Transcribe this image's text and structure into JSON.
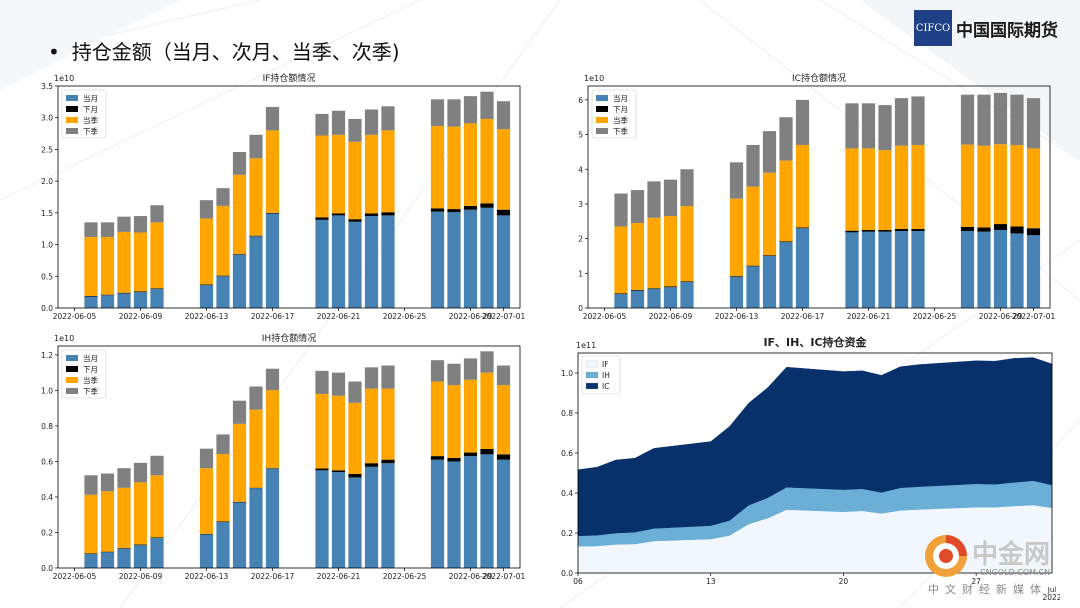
{
  "slide": {
    "bullet": "•",
    "title": "持仓金额（当月、次月、当季、次季)"
  },
  "logo": {
    "mark": "CIFCO",
    "name": "中国国际期货"
  },
  "watermark": {
    "name": "中金网",
    "url": "CNGOLD.COM.CN",
    "tagline": "中文财经新媒体"
  },
  "colors": {
    "current_month": "#4682b4",
    "next_month": "#000000",
    "current_quarter": "#ffa500",
    "next_quarter": "#808080",
    "IF": "#f2f7fd",
    "IH": "#6baed6",
    "IC": "#08306b"
  },
  "chart_data": [
    {
      "id": "if",
      "type": "bar",
      "stacked": true,
      "title": "IF持仓额情况",
      "y_exponent": "1e10",
      "ylim": [
        0,
        3.5
      ],
      "yticks": [
        0.0,
        0.5,
        1.0,
        1.5,
        2.0,
        2.5,
        3.0,
        3.5
      ],
      "xticks": [
        "2022-06-05",
        "2022-06-09",
        "2022-06-13",
        "2022-06-17",
        "2022-06-21",
        "2022-06-25",
        "2022-06-29",
        "2022-07-01"
      ],
      "dates": [
        "2022-06-06",
        "2022-06-07",
        "2022-06-08",
        "2022-06-09",
        "2022-06-10",
        "2022-06-13",
        "2022-06-14",
        "2022-06-15",
        "2022-06-16",
        "2022-06-17",
        "2022-06-20",
        "2022-06-21",
        "2022-06-22",
        "2022-06-23",
        "2022-06-24",
        "2022-06-27",
        "2022-06-28",
        "2022-06-29",
        "2022-06-30",
        "2022-07-01"
      ],
      "legend": [
        "当月",
        "下月",
        "当季",
        "下季"
      ],
      "legend_position": "upper-left",
      "series": [
        {
          "name": "当月",
          "values": [
            0.18,
            0.2,
            0.23,
            0.25,
            0.3,
            0.36,
            0.5,
            0.84,
            1.13,
            1.49,
            1.39,
            1.46,
            1.36,
            1.45,
            1.46,
            1.52,
            1.51,
            1.55,
            1.58,
            1.46
          ]
        },
        {
          "name": "下月",
          "values": [
            0.01,
            0.01,
            0.01,
            0.01,
            0.01,
            0.01,
            0.01,
            0.01,
            0.01,
            0.01,
            0.04,
            0.03,
            0.04,
            0.04,
            0.05,
            0.05,
            0.05,
            0.06,
            0.07,
            0.09
          ]
        },
        {
          "name": "当季",
          "values": [
            0.93,
            0.91,
            0.96,
            0.93,
            1.04,
            1.04,
            1.1,
            1.25,
            1.22,
            1.3,
            1.29,
            1.24,
            1.22,
            1.24,
            1.29,
            1.3,
            1.3,
            1.3,
            1.33,
            1.27
          ]
        },
        {
          "name": "下季",
          "values": [
            0.23,
            0.23,
            0.24,
            0.26,
            0.27,
            0.29,
            0.28,
            0.36,
            0.37,
            0.37,
            0.34,
            0.38,
            0.36,
            0.4,
            0.38,
            0.42,
            0.43,
            0.43,
            0.43,
            0.44
          ]
        }
      ]
    },
    {
      "id": "ic",
      "type": "bar",
      "stacked": true,
      "title": "IC持仓额情况",
      "y_exponent": "1e10",
      "ylim": [
        0,
        6.4
      ],
      "yticks": [
        0,
        1,
        2,
        3,
        4,
        5,
        6
      ],
      "xticks": [
        "2022-06-05",
        "2022-06-09",
        "2022-06-13",
        "2022-06-17",
        "2022-06-21",
        "2022-06-25",
        "2022-06-29",
        "2022-07-01"
      ],
      "dates": [
        "2022-06-06",
        "2022-06-07",
        "2022-06-08",
        "2022-06-09",
        "2022-06-10",
        "2022-06-13",
        "2022-06-14",
        "2022-06-15",
        "2022-06-16",
        "2022-06-17",
        "2022-06-20",
        "2022-06-21",
        "2022-06-22",
        "2022-06-23",
        "2022-06-24",
        "2022-06-27",
        "2022-06-28",
        "2022-06-29",
        "2022-06-30",
        "2022-07-01"
      ],
      "legend": [
        "当月",
        "下月",
        "当季",
        "下季"
      ],
      "legend_position": "upper-left",
      "series": [
        {
          "name": "当月",
          "values": [
            0.4,
            0.5,
            0.55,
            0.6,
            0.75,
            0.9,
            1.2,
            1.5,
            1.9,
            2.3,
            2.18,
            2.2,
            2.2,
            2.22,
            2.22,
            2.22,
            2.2,
            2.25,
            2.15,
            2.1
          ]
        },
        {
          "name": "下月",
          "values": [
            0.02,
            0.02,
            0.02,
            0.02,
            0.02,
            0.02,
            0.02,
            0.02,
            0.02,
            0.02,
            0.05,
            0.05,
            0.05,
            0.06,
            0.06,
            0.12,
            0.12,
            0.17,
            0.2,
            0.2
          ]
        },
        {
          "name": "当季",
          "values": [
            1.93,
            1.93,
            2.03,
            2.03,
            2.17,
            2.23,
            2.28,
            2.38,
            2.33,
            2.38,
            2.37,
            2.35,
            2.3,
            2.4,
            2.42,
            2.37,
            2.36,
            2.3,
            2.35,
            2.3
          ]
        },
        {
          "name": "下季",
          "values": [
            0.95,
            0.95,
            1.05,
            1.05,
            1.06,
            1.05,
            1.2,
            1.2,
            1.25,
            1.3,
            1.3,
            1.3,
            1.3,
            1.37,
            1.4,
            1.44,
            1.47,
            1.48,
            1.45,
            1.45
          ]
        }
      ]
    },
    {
      "id": "ih",
      "type": "bar",
      "stacked": true,
      "title": "IH持仓额情况",
      "y_exponent": "1e10",
      "ylim": [
        0,
        1.25
      ],
      "yticks": [
        0.0,
        0.2,
        0.4,
        0.6,
        0.8,
        1.0,
        1.2
      ],
      "xticks": [
        "2022-06-05",
        "2022-06-09",
        "2022-06-13",
        "2022-06-17",
        "2022-06-21",
        "2022-06-25",
        "2022-06-29",
        "2022-07-01"
      ],
      "dates": [
        "2022-06-06",
        "2022-06-07",
        "2022-06-08",
        "2022-06-09",
        "2022-06-10",
        "2022-06-13",
        "2022-06-14",
        "2022-06-15",
        "2022-06-16",
        "2022-06-17",
        "2022-06-20",
        "2022-06-21",
        "2022-06-22",
        "2022-06-23",
        "2022-06-24",
        "2022-06-27",
        "2022-06-28",
        "2022-06-29",
        "2022-06-30",
        "2022-07-01"
      ],
      "legend": [
        "当月",
        "下月",
        "当季",
        "下季"
      ],
      "legend_position": "upper-left",
      "series": [
        {
          "name": "当月",
          "values": [
            0.08,
            0.09,
            0.11,
            0.13,
            0.17,
            0.19,
            0.26,
            0.37,
            0.45,
            0.56,
            0.55,
            0.54,
            0.51,
            0.57,
            0.59,
            0.61,
            0.6,
            0.63,
            0.64,
            0.61
          ]
        },
        {
          "name": "下月",
          "values": [
            0.002,
            0.002,
            0.002,
            0.002,
            0.002,
            0.002,
            0.002,
            0.002,
            0.002,
            0.002,
            0.01,
            0.01,
            0.02,
            0.02,
            0.02,
            0.02,
            0.02,
            0.02,
            0.03,
            0.03
          ]
        },
        {
          "name": "当季",
          "values": [
            0.33,
            0.34,
            0.34,
            0.35,
            0.35,
            0.37,
            0.38,
            0.44,
            0.44,
            0.44,
            0.42,
            0.42,
            0.4,
            0.42,
            0.4,
            0.42,
            0.41,
            0.41,
            0.43,
            0.39
          ]
        },
        {
          "name": "下季",
          "values": [
            0.11,
            0.1,
            0.11,
            0.11,
            0.11,
            0.11,
            0.11,
            0.13,
            0.13,
            0.12,
            0.13,
            0.13,
            0.12,
            0.12,
            0.13,
            0.12,
            0.12,
            0.12,
            0.12,
            0.11
          ]
        }
      ]
    },
    {
      "id": "total",
      "type": "area",
      "stacked": true,
      "title": "IF、IH、IC持仓资金",
      "y_exponent": "1e11",
      "ylim": [
        0,
        1.1
      ],
      "yticks": [
        0.0,
        0.2,
        0.4,
        0.6,
        0.8,
        1.0
      ],
      "xticks": [
        "06",
        "13",
        "20",
        "27"
      ],
      "xtick_minor": [
        "Jul"
      ],
      "x_year": "2022",
      "x_dates": [
        "2022-06-06",
        "2022-06-07",
        "2022-06-08",
        "2022-06-09",
        "2022-06-10",
        "2022-06-13",
        "2022-06-14",
        "2022-06-15",
        "2022-06-16",
        "2022-06-17",
        "2022-06-20",
        "2022-06-21",
        "2022-06-22",
        "2022-06-23",
        "2022-06-24",
        "2022-06-27",
        "2022-06-28",
        "2022-06-29",
        "2022-06-30",
        "2022-07-01"
      ],
      "legend": [
        "IF",
        "IH",
        "IC"
      ],
      "legend_position": "upper-left",
      "series": [
        {
          "name": "IF",
          "values": [
            0.134,
            0.135,
            0.143,
            0.145,
            0.16,
            0.17,
            0.188,
            0.245,
            0.274,
            0.317,
            0.306,
            0.311,
            0.298,
            0.313,
            0.318,
            0.329,
            0.329,
            0.335,
            0.34,
            0.326
          ]
        },
        {
          "name": "IH",
          "values": [
            0.052,
            0.054,
            0.057,
            0.059,
            0.063,
            0.067,
            0.075,
            0.094,
            0.102,
            0.112,
            0.111,
            0.11,
            0.105,
            0.113,
            0.114,
            0.117,
            0.115,
            0.118,
            0.122,
            0.114
          ]
        },
        {
          "name": "IC",
          "values": [
            0.33,
            0.34,
            0.365,
            0.37,
            0.4,
            0.42,
            0.47,
            0.51,
            0.55,
            0.6,
            0.59,
            0.59,
            0.585,
            0.605,
            0.61,
            0.615,
            0.615,
            0.62,
            0.615,
            0.605
          ]
        }
      ]
    }
  ]
}
